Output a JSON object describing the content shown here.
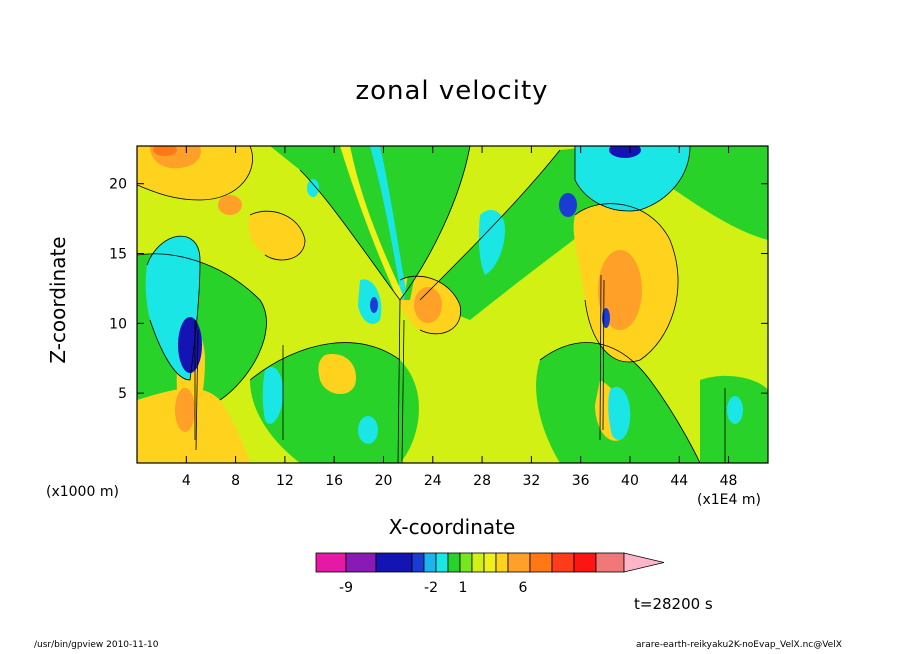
{
  "chart_data": {
    "type": "heatmap",
    "title": "zonal velocity",
    "xlabel": "X-coordinate",
    "ylabel": "Z-coordinate",
    "x_unit": "(x1E4 m)",
    "y_unit": "(x1000 m)",
    "x_ticks": [
      "4",
      "8",
      "12",
      "16",
      "20",
      "24",
      "28",
      "32",
      "36",
      "40",
      "44",
      "48"
    ],
    "x_tick_values": [
      4,
      8,
      12,
      16,
      20,
      24,
      28,
      32,
      36,
      40,
      44,
      48
    ],
    "y_ticks": [
      "5",
      "10",
      "15",
      "20"
    ],
    "y_tick_values": [
      5,
      10,
      15,
      20
    ],
    "xlim": [
      0,
      51.2
    ],
    "ylim": [
      0,
      22.7
    ],
    "grid": false,
    "colorbar": {
      "labels": [
        "-9",
        "-2",
        "1",
        "6"
      ],
      "colors": [
        "#e619a6",
        "#8a1ab4",
        "#1414b4",
        "#1a3cd2",
        "#1ab4f0",
        "#1ae6e6",
        "#28d228",
        "#78e61e",
        "#d2f014",
        "#f0f01a",
        "#ffd21e",
        "#ffa028",
        "#ff7814",
        "#ff3c1a",
        "#ff1414",
        "#f07878",
        "#ffb4c8"
      ]
    },
    "annotations": {
      "time": "t=28200 s"
    }
  },
  "footer": {
    "left": "/usr/bin/gpview   2010-11-10",
    "right": "arare-earth-reikyaku2K-noEvap_VelX.nc@VelX"
  }
}
